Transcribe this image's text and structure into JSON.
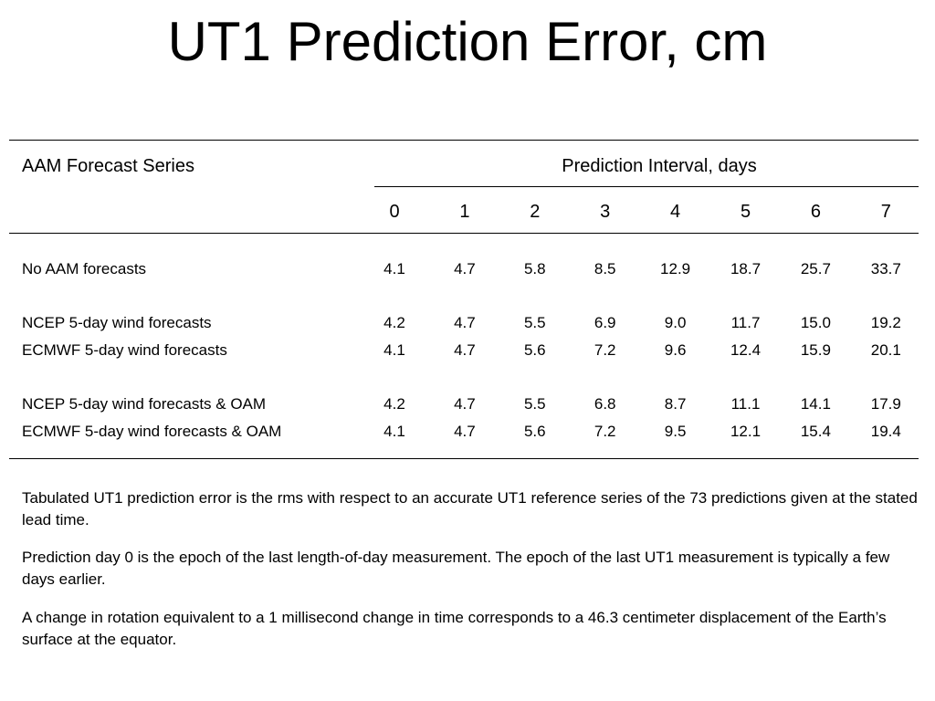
{
  "title": "UT1 Prediction Error, cm",
  "table": {
    "row_header": "AAM Forecast Series",
    "column_group": "Prediction Interval, days",
    "columns": [
      "0",
      "1",
      "2",
      "3",
      "4",
      "5",
      "6",
      "7"
    ],
    "row_groups": [
      [
        {
          "label": "No AAM forecasts",
          "values": [
            "4.1",
            "4.7",
            "5.8",
            "8.5",
            "12.9",
            "18.7",
            "25.7",
            "33.7"
          ]
        }
      ],
      [
        {
          "label": "NCEP 5-day wind forecasts",
          "values": [
            "4.2",
            "4.7",
            "5.5",
            "6.9",
            "9.0",
            "11.7",
            "15.0",
            "19.2"
          ]
        },
        {
          "label": "ECMWF 5-day wind forecasts",
          "values": [
            "4.1",
            "4.7",
            "5.6",
            "7.2",
            "9.6",
            "12.4",
            "15.9",
            "20.1"
          ]
        }
      ],
      [
        {
          "label": "NCEP 5-day wind forecasts & OAM",
          "values": [
            "4.2",
            "4.7",
            "5.5",
            "6.8",
            "8.7",
            "11.1",
            "14.1",
            "17.9"
          ]
        },
        {
          "label": "ECMWF 5-day wind forecasts & OAM",
          "values": [
            "4.1",
            "4.7",
            "5.6",
            "7.2",
            "9.5",
            "12.1",
            "15.4",
            "19.4"
          ]
        }
      ]
    ]
  },
  "notes": [
    "Tabulated UT1 prediction error is the rms with respect to an accurate UT1 reference series of the 73 predictions given at the stated lead time.",
    "Prediction day 0 is the epoch of the last length-of-day measurement. The epoch of the last UT1 measurement is typically a few days earlier.",
    "A change in rotation equivalent to a 1 millisecond change in time corresponds to a 46.3 centimeter displacement of the Earth’s surface at the equator."
  ]
}
